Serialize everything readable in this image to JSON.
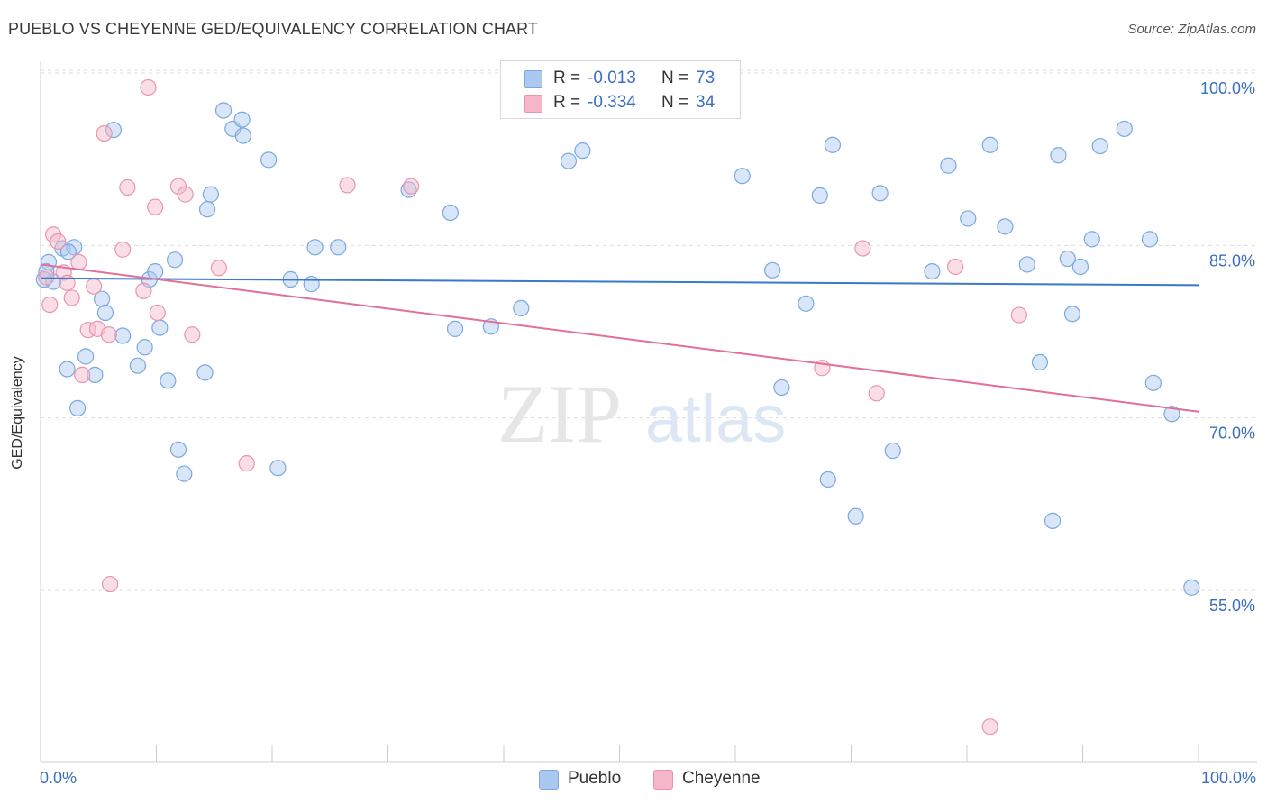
{
  "title": "PUEBLO VS CHEYENNE GED/EQUIVALENCY CORRELATION CHART",
  "source": "Source: ZipAtlas.com",
  "watermark": {
    "zip": "ZIP",
    "atlas": "atlas"
  },
  "legend_top": {
    "r_label": "R =",
    "n_label": "N =",
    "rows": [
      {
        "r": "-0.013",
        "n": "73",
        "color": "#aac8f0"
      },
      {
        "r": "-0.334",
        "n": "34",
        "color": "#f4b6c8"
      }
    ]
  },
  "legend_bottom": [
    {
      "label": "Pueblo",
      "color": "#aac8f0"
    },
    {
      "label": "Cheyenne",
      "color": "#f4b6c8"
    }
  ],
  "colors": {
    "pueblo_fill": "#aac8f0",
    "pueblo_stroke": "#7aa8e0",
    "pueblo_line": "#3a78c9",
    "cheyenne_fill": "#f4b6c8",
    "cheyenne_stroke": "#e995b0",
    "cheyenne_line": "#e0709a",
    "tick_text": "#3a6fc0",
    "grid": "#dddddd"
  },
  "chart_data": {
    "type": "scatter",
    "title": "PUEBLO VS CHEYENNE GED/EQUIVALENCY CORRELATION CHART",
    "xlabel": "",
    "ylabel": "GED/Equivalency",
    "xlim": [
      0,
      100
    ],
    "ylim": [
      43,
      101.5
    ],
    "x_tick_labels": [
      "0.0%",
      "100.0%"
    ],
    "y_ticks": [
      55,
      70,
      85,
      100
    ],
    "y_tick_labels": [
      "55.0%",
      "70.0%",
      "85.0%",
      "100.0%"
    ],
    "grid": "horizontal dashed",
    "legend_position": "top-center",
    "series": [
      {
        "name": "Pueblo",
        "trend": {
          "x": [
            0,
            100
          ],
          "y": [
            83.4,
            82.8
          ]
        },
        "points": [
          [
            0.7,
            84.8
          ],
          [
            1.1,
            83.1
          ],
          [
            1.9,
            86.0
          ],
          [
            2.9,
            86.1
          ],
          [
            2.4,
            85.7
          ],
          [
            0.3,
            83.3
          ],
          [
            2.3,
            75.5
          ],
          [
            3.9,
            76.6
          ],
          [
            4.7,
            75.0
          ],
          [
            5.3,
            81.6
          ],
          [
            5.6,
            80.4
          ],
          [
            6.3,
            96.3
          ],
          [
            7.1,
            78.4
          ],
          [
            8.4,
            75.8
          ],
          [
            9.0,
            77.4
          ],
          [
            9.4,
            83.3
          ],
          [
            9.9,
            84.0
          ],
          [
            10.3,
            79.1
          ],
          [
            11.0,
            74.5
          ],
          [
            11.6,
            85.0
          ],
          [
            11.9,
            68.5
          ],
          [
            12.4,
            66.4
          ],
          [
            14.2,
            75.2
          ],
          [
            14.4,
            89.4
          ],
          [
            14.7,
            90.7
          ],
          [
            15.8,
            98.0
          ],
          [
            16.6,
            96.4
          ],
          [
            17.4,
            97.2
          ],
          [
            17.5,
            95.8
          ],
          [
            19.7,
            93.7
          ],
          [
            20.5,
            66.9
          ],
          [
            21.6,
            83.3
          ],
          [
            23.4,
            82.9
          ],
          [
            23.7,
            86.1
          ],
          [
            25.7,
            86.1
          ],
          [
            31.8,
            91.1
          ],
          [
            35.4,
            89.1
          ],
          [
            35.8,
            79.0
          ],
          [
            38.9,
            79.2
          ],
          [
            41.5,
            80.8
          ],
          [
            45.6,
            93.6
          ],
          [
            46.8,
            94.5
          ],
          [
            60.6,
            92.3
          ],
          [
            63.2,
            84.1
          ],
          [
            64.0,
            73.9
          ],
          [
            66.1,
            81.2
          ],
          [
            67.3,
            90.6
          ],
          [
            68.0,
            65.9
          ],
          [
            68.4,
            95.0
          ],
          [
            70.4,
            62.7
          ],
          [
            72.5,
            90.8
          ],
          [
            73.6,
            68.4
          ],
          [
            77.0,
            84.0
          ],
          [
            78.4,
            93.2
          ],
          [
            80.1,
            88.6
          ],
          [
            82.0,
            95.0
          ],
          [
            83.3,
            87.9
          ],
          [
            85.2,
            84.6
          ],
          [
            86.3,
            76.1
          ],
          [
            87.4,
            62.3
          ],
          [
            87.9,
            94.1
          ],
          [
            88.7,
            85.1
          ],
          [
            89.1,
            80.3
          ],
          [
            89.8,
            84.4
          ],
          [
            90.8,
            86.8
          ],
          [
            91.5,
            94.9
          ],
          [
            93.6,
            96.4
          ],
          [
            95.8,
            86.8
          ],
          [
            96.1,
            74.3
          ],
          [
            97.7,
            71.6
          ],
          [
            99.4,
            56.5
          ],
          [
            0.5,
            84.0
          ],
          [
            3.2,
            72.1
          ]
        ]
      },
      {
        "name": "Cheyenne",
        "trend": {
          "x": [
            0,
            100
          ],
          "y": [
            84.6,
            71.8
          ]
        },
        "points": [
          [
            0.5,
            83.5
          ],
          [
            0.8,
            81.1
          ],
          [
            1.1,
            87.2
          ],
          [
            1.5,
            86.6
          ],
          [
            2.0,
            83.9
          ],
          [
            2.3,
            83.0
          ],
          [
            2.7,
            81.7
          ],
          [
            3.3,
            84.8
          ],
          [
            3.6,
            75.0
          ],
          [
            4.1,
            78.9
          ],
          [
            4.6,
            82.7
          ],
          [
            4.9,
            79.0
          ],
          [
            5.5,
            96.0
          ],
          [
            5.9,
            78.5
          ],
          [
            6.0,
            56.8
          ],
          [
            7.1,
            85.9
          ],
          [
            7.5,
            91.3
          ],
          [
            8.9,
            82.3
          ],
          [
            9.3,
            100.0
          ],
          [
            9.9,
            89.6
          ],
          [
            10.1,
            80.4
          ],
          [
            11.9,
            91.4
          ],
          [
            12.5,
            90.7
          ],
          [
            13.1,
            78.5
          ],
          [
            15.4,
            84.3
          ],
          [
            17.8,
            67.3
          ],
          [
            26.5,
            91.5
          ],
          [
            32.0,
            91.4
          ],
          [
            67.5,
            75.6
          ],
          [
            71.0,
            86.0
          ],
          [
            72.2,
            73.4
          ],
          [
            79.0,
            84.4
          ],
          [
            82.0,
            44.4
          ],
          [
            84.5,
            80.2
          ]
        ]
      }
    ]
  }
}
